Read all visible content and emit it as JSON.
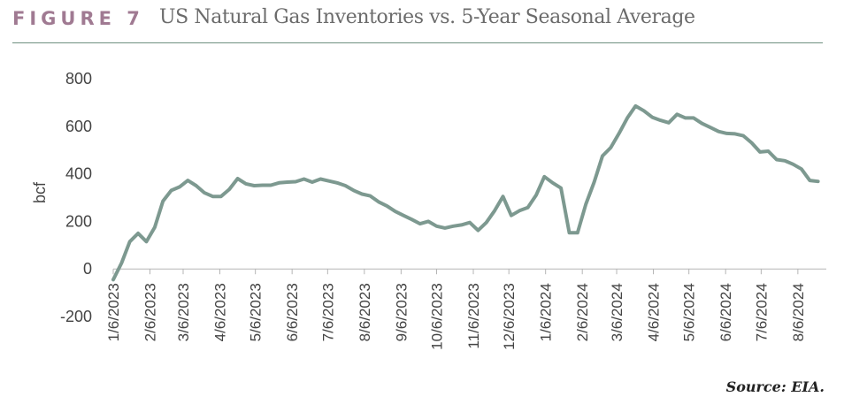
{
  "header": {
    "figure_label": "FIGURE 7",
    "title": "US Natural Gas Inventories vs. 5-Year Seasonal Average"
  },
  "source": "Source: EIA.",
  "colors": {
    "line": "#7d9990",
    "label": "#a07a92",
    "axis": "#999999"
  },
  "chart_data": {
    "type": "line",
    "title": "US Natural Gas Inventories vs. 5-Year Seasonal Average",
    "ylabel": "bcf",
    "xlabel": "",
    "ylim": [
      -200,
      800
    ],
    "yticks": [
      -200,
      0,
      200,
      400,
      600,
      800
    ],
    "xlim": [
      "2023-01-06",
      "2024-08-30"
    ],
    "xticks": [
      "1/6/2023",
      "2/6/2023",
      "3/6/2023",
      "4/6/2023",
      "5/6/2023",
      "6/6/2023",
      "7/6/2023",
      "8/6/2023",
      "9/6/2023",
      "10/6/2023",
      "11/6/2023",
      "12/6/2023",
      "1/6/2024",
      "2/6/2024",
      "3/6/2024",
      "4/6/2024",
      "5/6/2024",
      "6/6/2024",
      "7/6/2024",
      "8/6/2024"
    ],
    "grid": false,
    "series": [
      {
        "x": [
          "2023-01-06",
          "2023-01-13",
          "2023-01-20",
          "2023-01-27",
          "2023-02-03",
          "2023-02-10",
          "2023-02-17",
          "2023-02-24",
          "2023-03-03",
          "2023-03-10",
          "2023-03-17",
          "2023-03-24",
          "2023-03-31",
          "2023-04-07",
          "2023-04-14",
          "2023-04-21",
          "2023-04-28",
          "2023-05-05",
          "2023-05-12",
          "2023-05-19",
          "2023-05-26",
          "2023-06-02",
          "2023-06-09",
          "2023-06-16",
          "2023-06-23",
          "2023-06-30",
          "2023-07-07",
          "2023-07-14",
          "2023-07-21",
          "2023-07-28",
          "2023-08-04",
          "2023-08-11",
          "2023-08-18",
          "2023-08-25",
          "2023-09-01",
          "2023-09-08",
          "2023-09-15",
          "2023-09-22",
          "2023-09-29",
          "2023-10-06",
          "2023-10-13",
          "2023-10-20",
          "2023-10-27",
          "2023-11-03",
          "2023-11-10",
          "2023-11-17",
          "2023-11-24",
          "2023-12-01",
          "2023-12-08",
          "2023-12-15",
          "2023-12-22",
          "2023-12-29",
          "2024-01-05",
          "2024-01-12",
          "2024-01-19",
          "2024-01-26",
          "2024-02-02",
          "2024-02-09",
          "2024-02-16",
          "2024-02-23",
          "2024-03-01",
          "2024-03-08",
          "2024-03-15",
          "2024-03-22",
          "2024-03-29",
          "2024-04-05",
          "2024-04-12",
          "2024-04-19",
          "2024-04-26",
          "2024-05-03",
          "2024-05-10",
          "2024-05-17",
          "2024-05-24",
          "2024-05-31",
          "2024-06-07",
          "2024-06-14",
          "2024-06-21",
          "2024-06-28",
          "2024-07-05",
          "2024-07-12",
          "2024-07-19",
          "2024-07-26",
          "2024-08-02",
          "2024-08-09",
          "2024-08-16",
          "2024-08-23"
        ],
        "values": [
          -45,
          25,
          115,
          150,
          115,
          175,
          285,
          330,
          345,
          372,
          350,
          320,
          305,
          305,
          335,
          380,
          358,
          350,
          352,
          352,
          362,
          365,
          367,
          378,
          365,
          378,
          370,
          362,
          350,
          330,
          315,
          307,
          282,
          265,
          242,
          225,
          208,
          190,
          200,
          180,
          172,
          180,
          185,
          195,
          162,
          195,
          245,
          305,
          225,
          245,
          258,
          310,
          388,
          362,
          340,
          152,
          152,
          272,
          365,
          475,
          510,
          570,
          635,
          685,
          665,
          638,
          625,
          615,
          650,
          635,
          635,
          612,
          595,
          578,
          570,
          568,
          560,
          530,
          492,
          495,
          460,
          455,
          440,
          420,
          372,
          368
        ]
      }
    ]
  }
}
